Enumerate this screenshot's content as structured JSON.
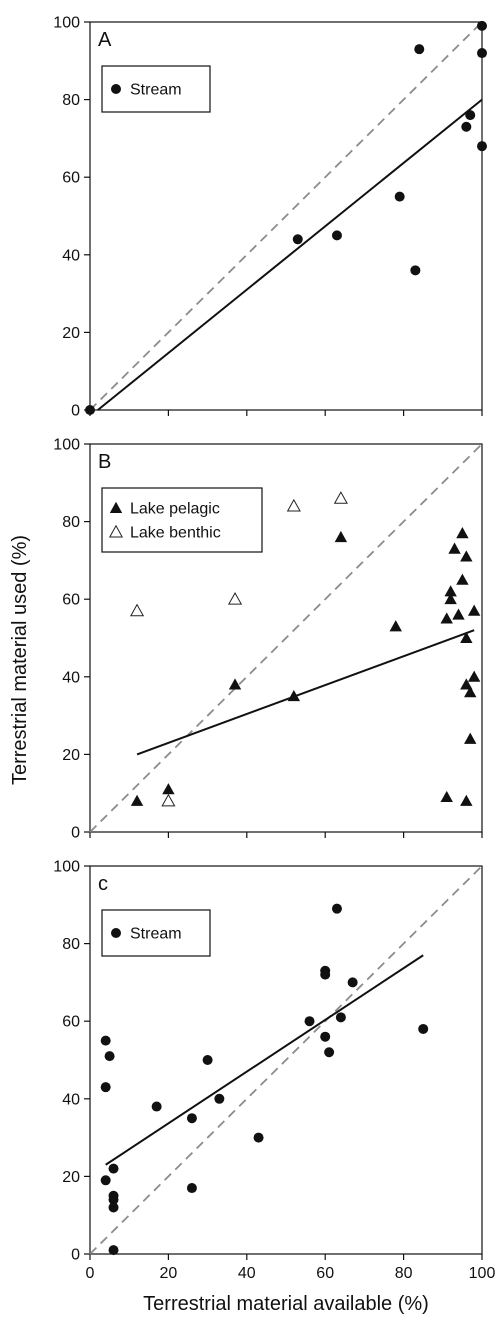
{
  "chart_data": {
    "shared": {
      "xlabel": "Terrestrial material available (%)",
      "ylabel": "Terrestrial material used (%)",
      "xlim": [
        0,
        100
      ],
      "ylim": [
        0,
        100
      ],
      "ticks": [
        0,
        20,
        40,
        60,
        80,
        100
      ],
      "reference_line": "1:1 dashed gray line"
    },
    "panels": [
      {
        "label": "A",
        "type": "scatter",
        "legend_position": "top-left",
        "x_ticks_shown": false,
        "series": [
          {
            "name": "Stream",
            "marker": "filled-circle",
            "points": [
              [
                0,
                0
              ],
              [
                53,
                44
              ],
              [
                63,
                45
              ],
              [
                79,
                55
              ],
              [
                83,
                36
              ],
              [
                84,
                93
              ],
              [
                96,
                73
              ],
              [
                97,
                76
              ],
              [
                100,
                92
              ],
              [
                100,
                68
              ],
              [
                100,
                99
              ]
            ]
          }
        ],
        "fit_lines": [
          {
            "x": [
              2,
              100
            ],
            "y": [
              0,
              80
            ]
          }
        ]
      },
      {
        "label": "B",
        "type": "scatter",
        "legend_position": "top-left",
        "x_ticks_shown": false,
        "series": [
          {
            "name": "Lake pelagic",
            "marker": "filled-triangle",
            "points": [
              [
                12,
                8
              ],
              [
                20,
                11
              ],
              [
                37,
                38
              ],
              [
                52,
                35
              ],
              [
                64,
                76
              ],
              [
                78,
                53
              ],
              [
                91,
                9
              ],
              [
                91,
                55
              ],
              [
                92,
                62
              ],
              [
                92,
                60
              ],
              [
                93,
                73
              ],
              [
                94,
                56
              ],
              [
                95,
                65
              ],
              [
                95,
                77
              ],
              [
                96,
                71
              ],
              [
                96,
                38
              ],
              [
                96,
                50
              ],
              [
                96,
                8
              ],
              [
                97,
                36
              ],
              [
                97,
                24
              ],
              [
                98,
                57
              ],
              [
                98,
                40
              ]
            ]
          },
          {
            "name": "Lake benthic",
            "marker": "open-triangle",
            "points": [
              [
                12,
                57
              ],
              [
                20,
                8
              ],
              [
                37,
                60
              ],
              [
                52,
                84
              ],
              [
                64,
                86
              ]
            ]
          }
        ],
        "fit_lines": [
          {
            "x": [
              12,
              98
            ],
            "y": [
              20,
              52
            ]
          }
        ]
      },
      {
        "label": "c",
        "type": "scatter",
        "legend_position": "top-left",
        "x_ticks_shown": true,
        "series": [
          {
            "name": "Stream",
            "marker": "filled-circle",
            "points": [
              [
                4,
                55
              ],
              [
                5,
                51
              ],
              [
                4,
                43
              ],
              [
                4,
                19
              ],
              [
                6,
                22
              ],
              [
                6,
                15
              ],
              [
                6,
                14
              ],
              [
                6,
                12
              ],
              [
                6,
                1
              ],
              [
                17,
                38
              ],
              [
                26,
                35
              ],
              [
                26,
                17
              ],
              [
                30,
                50
              ],
              [
                33,
                40
              ],
              [
                43,
                30
              ],
              [
                56,
                60
              ],
              [
                60,
                56
              ],
              [
                60,
                73
              ],
              [
                60,
                72
              ],
              [
                61,
                52
              ],
              [
                63,
                89
              ],
              [
                64,
                61
              ],
              [
                67,
                70
              ],
              [
                85,
                58
              ]
            ]
          }
        ],
        "fit_lines": [
          {
            "x": [
              4,
              85
            ],
            "y": [
              23,
              77
            ]
          }
        ]
      }
    ]
  }
}
